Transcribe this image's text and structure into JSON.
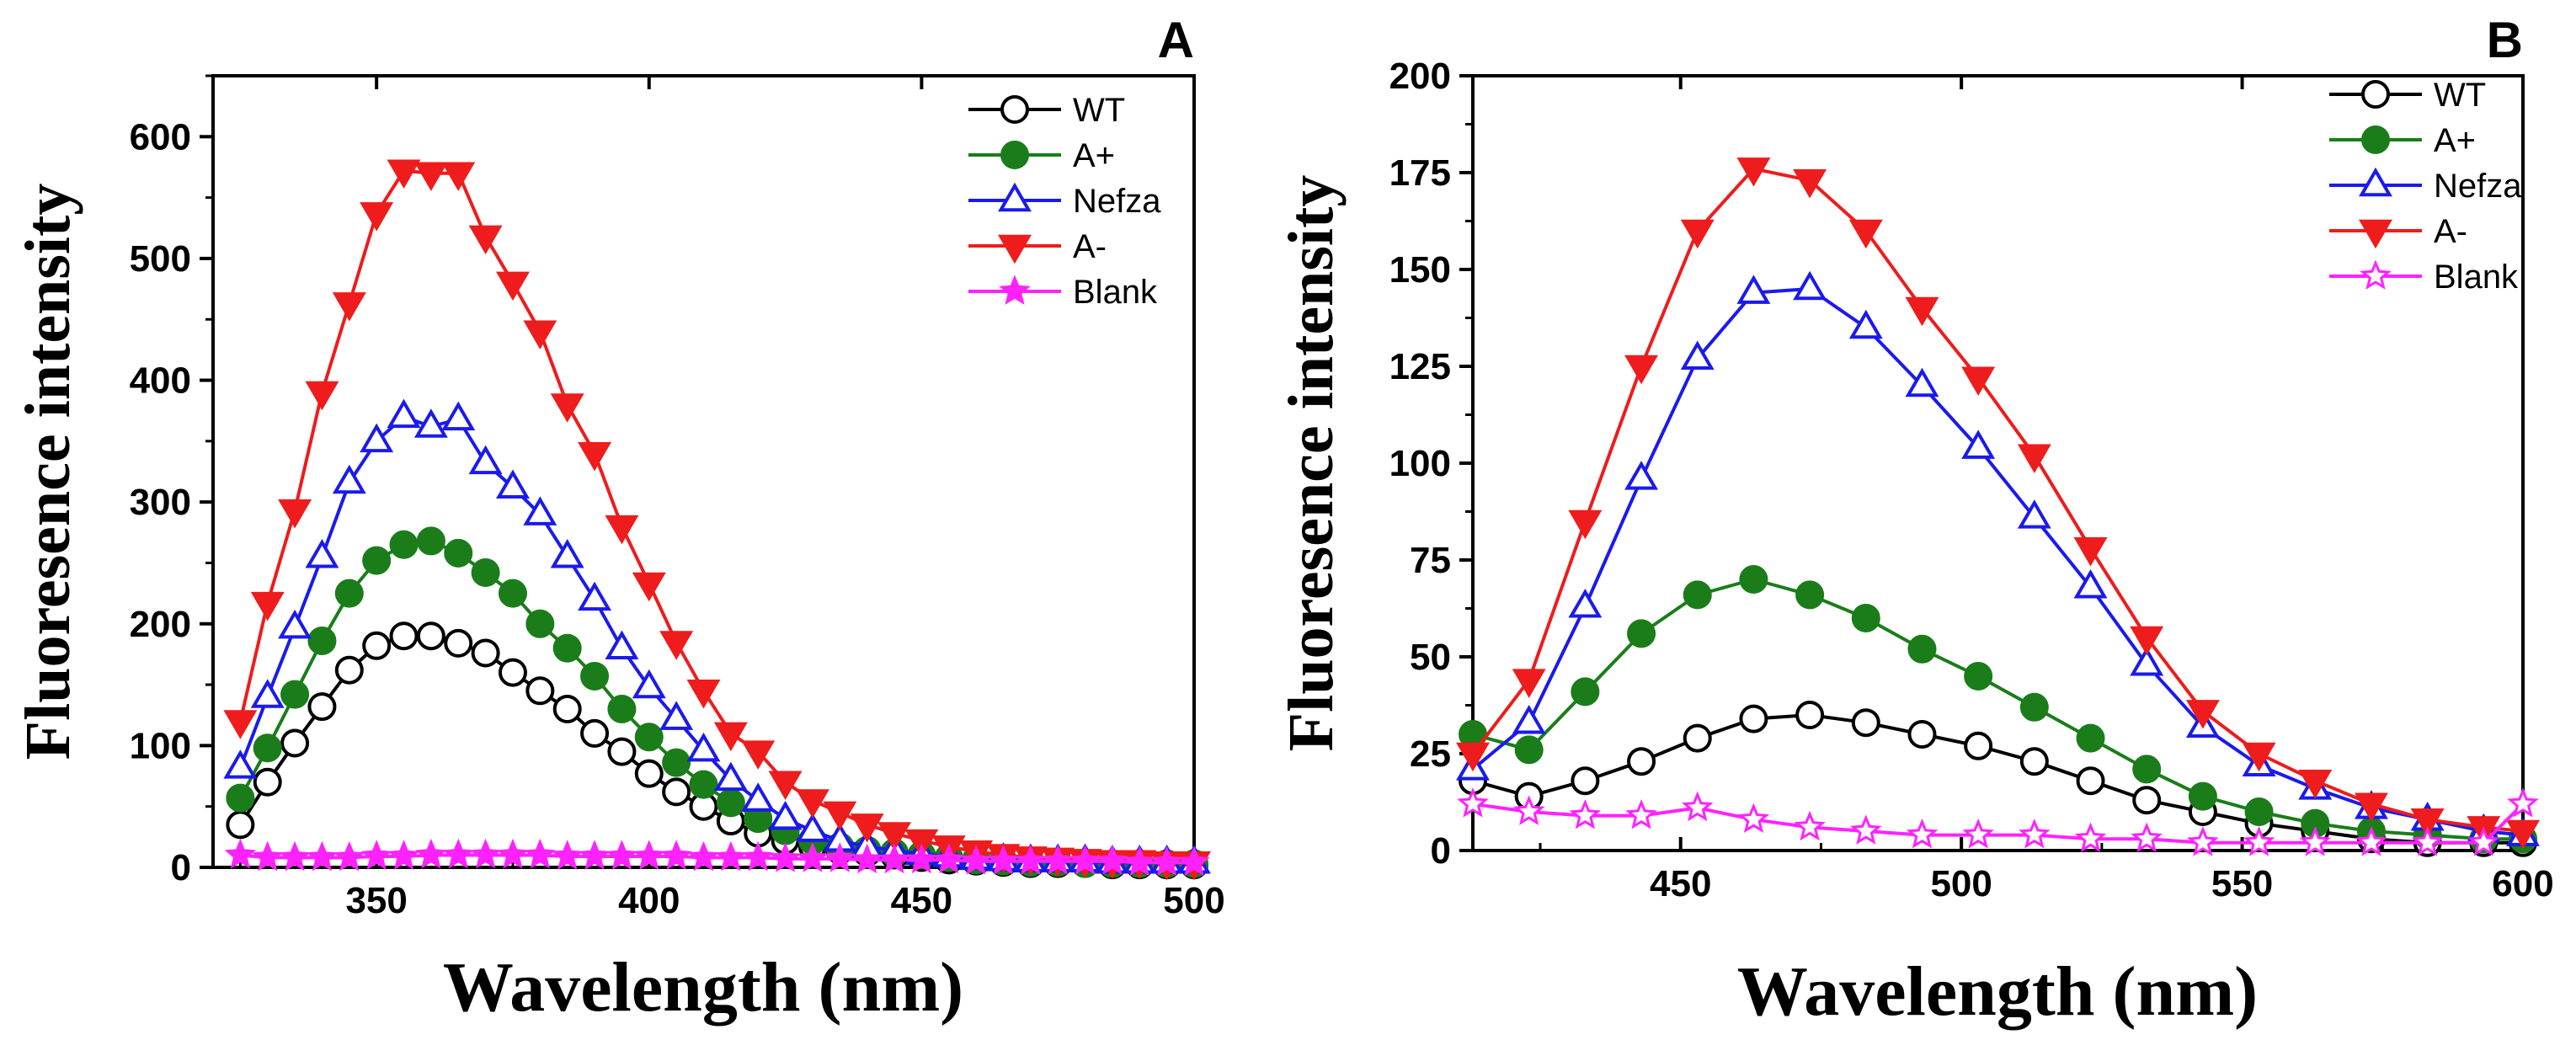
{
  "chart_data": [
    {
      "type": "line",
      "panel_label": "A",
      "xlabel": "Wavelength (nm)",
      "ylabel": "Fluoresence intensity",
      "xlim": [
        320,
        500
      ],
      "ylim": [
        0,
        650
      ],
      "xticks": [
        350,
        400,
        450,
        500
      ],
      "yticks": [
        0,
        100,
        200,
        300,
        400,
        500,
        600
      ],
      "legend_position": "top-right",
      "series": [
        {
          "name": "WT",
          "color": "#000000",
          "marker": "circle-open",
          "x": [
            325,
            330,
            335,
            340,
            345,
            350,
            355,
            360,
            365,
            370,
            375,
            380,
            385,
            390,
            395,
            400,
            405,
            410,
            415,
            420,
            425,
            430,
            435,
            440,
            445,
            450,
            455,
            460,
            465,
            470,
            475,
            480,
            485,
            490,
            495,
            500
          ],
          "y": [
            35,
            70,
            102,
            132,
            162,
            182,
            190,
            190,
            184,
            176,
            160,
            145,
            130,
            110,
            95,
            77,
            62,
            50,
            38,
            28,
            22,
            17,
            14,
            12,
            10,
            8,
            6,
            5,
            4,
            3,
            3,
            3,
            2,
            2,
            2,
            2
          ]
        },
        {
          "name": "A+",
          "color": "#1a7d1a",
          "marker": "circle-filled",
          "x": [
            325,
            330,
            335,
            340,
            345,
            350,
            355,
            360,
            365,
            370,
            375,
            380,
            385,
            390,
            395,
            400,
            405,
            410,
            415,
            420,
            425,
            430,
            435,
            440,
            445,
            450,
            455,
            460,
            465,
            470,
            475,
            480,
            485,
            490,
            495,
            500
          ],
          "y": [
            57,
            98,
            142,
            186,
            225,
            252,
            265,
            268,
            258,
            242,
            225,
            200,
            180,
            157,
            130,
            107,
            86,
            68,
            53,
            40,
            30,
            22,
            17,
            14,
            12,
            10,
            8,
            6,
            5,
            4,
            4,
            3,
            3,
            3,
            3,
            3
          ]
        },
        {
          "name": "Nefza",
          "color": "#1a1aee",
          "marker": "triangle-up-open",
          "x": [
            325,
            330,
            335,
            340,
            345,
            350,
            355,
            360,
            365,
            370,
            375,
            380,
            385,
            390,
            395,
            400,
            405,
            410,
            415,
            420,
            425,
            430,
            435,
            440,
            445,
            450,
            455,
            460,
            465,
            470,
            475,
            480,
            485,
            490,
            495,
            500
          ],
          "y": [
            82,
            140,
            197,
            255,
            316,
            350,
            370,
            362,
            368,
            332,
            312,
            290,
            255,
            220,
            180,
            148,
            122,
            96,
            72,
            55,
            40,
            30,
            22,
            17,
            14,
            11,
            9,
            7,
            6,
            5,
            5,
            5,
            4,
            4,
            4,
            4
          ]
        },
        {
          "name": "A-",
          "color": "#ee1c1c",
          "marker": "triangle-down-filled",
          "x": [
            325,
            330,
            335,
            340,
            345,
            350,
            355,
            360,
            365,
            370,
            375,
            380,
            385,
            390,
            395,
            400,
            405,
            410,
            415,
            420,
            425,
            430,
            435,
            440,
            445,
            450,
            455,
            460,
            465,
            470,
            475,
            480,
            485,
            490,
            495,
            500
          ],
          "y": [
            120,
            217,
            293,
            390,
            463,
            537,
            572,
            570,
            570,
            518,
            480,
            440,
            380,
            340,
            280,
            233,
            185,
            145,
            110,
            95,
            70,
            55,
            45,
            35,
            28,
            22,
            17,
            13,
            10,
            8,
            7,
            6,
            5,
            5,
            4,
            4
          ]
        },
        {
          "name": "Blank",
          "color": "#ff22ff",
          "marker": "star-filled",
          "x": [
            325,
            330,
            335,
            340,
            345,
            350,
            355,
            360,
            365,
            370,
            375,
            380,
            385,
            390,
            395,
            400,
            405,
            410,
            415,
            420,
            425,
            430,
            435,
            440,
            445,
            450,
            455,
            460,
            465,
            470,
            475,
            480,
            485,
            490,
            495,
            500
          ],
          "y": [
            10,
            8,
            8,
            8,
            8,
            9,
            9,
            10,
            10,
            10,
            10,
            10,
            9,
            9,
            9,
            9,
            9,
            8,
            8,
            8,
            7,
            7,
            7,
            6,
            6,
            6,
            6,
            5,
            5,
            5,
            5,
            5,
            5,
            4,
            4,
            4
          ]
        }
      ]
    },
    {
      "type": "line",
      "panel_label": "B",
      "xlabel": "Wavelength (nm)",
      "ylabel": "Fluoresence intensity",
      "xlim": [
        413,
        600
      ],
      "ylim": [
        0,
        200
      ],
      "xticks": [
        450,
        500,
        550,
        600
      ],
      "yticks": [
        0,
        25,
        50,
        75,
        100,
        125,
        150,
        175,
        200
      ],
      "legend_position": "top-right",
      "series": [
        {
          "name": "WT",
          "color": "#000000",
          "marker": "circle-open",
          "x": [
            413,
            423,
            433,
            443,
            453,
            463,
            473,
            483,
            493,
            503,
            513,
            523,
            533,
            543,
            553,
            563,
            573,
            583,
            593,
            600
          ],
          "y": [
            18,
            14,
            18,
            23,
            29,
            34,
            35,
            33,
            30,
            27,
            23,
            18,
            13,
            10,
            7,
            5,
            3,
            2,
            2,
            2
          ]
        },
        {
          "name": "A+",
          "color": "#1a7d1a",
          "marker": "circle-filled",
          "x": [
            413,
            423,
            433,
            443,
            453,
            463,
            473,
            483,
            493,
            503,
            513,
            523,
            533,
            543,
            553,
            563,
            573,
            583,
            593,
            600
          ],
          "y": [
            30,
            26,
            41,
            56,
            66,
            70,
            66,
            60,
            52,
            45,
            37,
            29,
            21,
            14,
            10,
            7,
            5,
            4,
            3,
            3
          ]
        },
        {
          "name": "Nefza",
          "color": "#1a1aee",
          "marker": "triangle-up-open",
          "x": [
            413,
            423,
            433,
            443,
            453,
            463,
            473,
            483,
            493,
            503,
            513,
            523,
            533,
            543,
            553,
            563,
            573,
            583,
            593,
            600
          ],
          "y": [
            21,
            33,
            63,
            96,
            127,
            144,
            145,
            135,
            120,
            104,
            86,
            68,
            48,
            32,
            22,
            16,
            11,
            8,
            5,
            4
          ]
        },
        {
          "name": "A-",
          "color": "#ee1c1c",
          "marker": "triangle-down-filled",
          "x": [
            413,
            423,
            433,
            443,
            453,
            463,
            473,
            483,
            493,
            503,
            513,
            523,
            533,
            543,
            553,
            563,
            573,
            583,
            593,
            600
          ],
          "y": [
            25,
            44,
            85,
            125,
            160,
            176,
            173,
            160,
            140,
            122,
            102,
            78,
            55,
            36,
            25,
            18,
            12,
            8,
            6,
            5
          ]
        },
        {
          "name": "Blank",
          "color": "#ff22ff",
          "marker": "star-open",
          "x": [
            413,
            423,
            433,
            443,
            453,
            463,
            473,
            483,
            493,
            503,
            513,
            523,
            533,
            543,
            553,
            563,
            573,
            583,
            593,
            600
          ],
          "y": [
            12,
            10,
            9,
            9,
            11,
            8,
            6,
            5,
            4,
            4,
            4,
            3,
            3,
            2,
            2,
            2,
            2,
            2,
            2,
            12
          ]
        }
      ]
    }
  ]
}
